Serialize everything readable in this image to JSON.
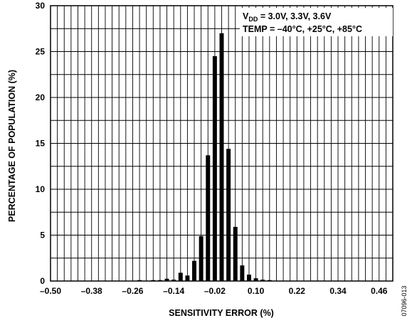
{
  "chart_data": {
    "type": "bar",
    "title": "",
    "xlabel": "SENSITIVITY ERROR (%)",
    "ylabel": "PERCENTAGE OF POPULATION (%)",
    "xlim": [
      -0.5,
      0.5
    ],
    "ylim": [
      0,
      30
    ],
    "x_ticks": [
      -0.5,
      -0.38,
      -0.26,
      -0.14,
      -0.02,
      0.1,
      0.22,
      0.34,
      0.46
    ],
    "x_tick_labels": [
      "–0.50",
      "–0.38",
      "–0.26",
      "–0.14",
      "–0.02",
      "0.10",
      "0.22",
      "0.34",
      "0.46"
    ],
    "y_ticks": [
      0,
      5,
      10,
      15,
      20,
      25,
      30
    ],
    "y_tick_labels": [
      "0",
      "5",
      "10",
      "15",
      "20",
      "25",
      "30"
    ],
    "grid": true,
    "bin_width": 0.02,
    "bins": [
      {
        "x": -0.24,
        "value": 0.1
      },
      {
        "x": -0.2,
        "value": 0.1
      },
      {
        "x": -0.18,
        "value": 0.1
      },
      {
        "x": -0.16,
        "value": 0.25
      },
      {
        "x": -0.14,
        "value": 0.15
      },
      {
        "x": -0.12,
        "value": 0.9
      },
      {
        "x": -0.1,
        "value": 0.6
      },
      {
        "x": -0.08,
        "value": 2.2
      },
      {
        "x": -0.06,
        "value": 4.9
      },
      {
        "x": -0.04,
        "value": 13.7
      },
      {
        "x": -0.02,
        "value": 24.5
      },
      {
        "x": 0.0,
        "value": 27.0
      },
      {
        "x": 0.02,
        "value": 14.4
      },
      {
        "x": 0.04,
        "value": 5.9
      },
      {
        "x": 0.06,
        "value": 1.7
      },
      {
        "x": 0.08,
        "value": 0.7
      },
      {
        "x": 0.1,
        "value": 0.3
      },
      {
        "x": 0.12,
        "value": 0.15
      },
      {
        "x": 0.14,
        "value": 0.1
      }
    ],
    "annotation": {
      "line1_prefix": "V",
      "line1_subscript": "DD",
      "line1_rest": " = 3.0V, 3.3V, 3.6V",
      "line2": "TEMP = –40°C, +25°C, +85°C"
    },
    "figure_id": "07096-013"
  }
}
